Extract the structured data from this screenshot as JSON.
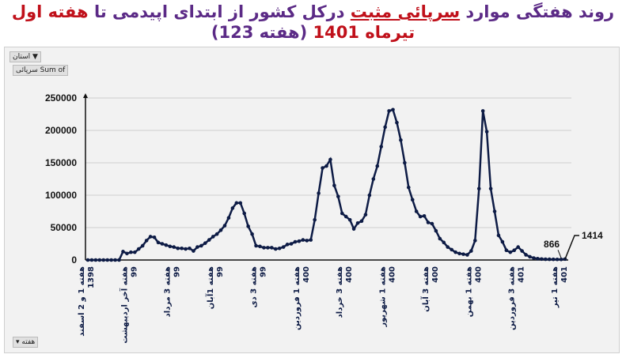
{
  "title": {
    "part1": "روند هفتگی موارد",
    "part2": "سرپائی مثبت",
    "part3": "درکل کشور از ابتدای اپیدمی تا",
    "part4": "هفته اول تیرماه",
    "part5": "1401",
    "part6": "(هفته 123)"
  },
  "filter_button": "استان",
  "field_button": "سرپائی Sum of",
  "axis_field_button": "هفته",
  "colors": {
    "line": "#0d1b45",
    "title": "#5b2a86",
    "accent": "#c0101a"
  },
  "chart_data": {
    "type": "line",
    "ylim": [
      0,
      250000
    ],
    "yticks": [
      0,
      50000,
      100000,
      150000,
      200000,
      250000
    ],
    "grid": true,
    "tick_labels": [
      "هفته 1 و 2 اسفند 1398",
      "هفته آخر اردیبهشت 99",
      "هفته 3 مرداد 99",
      "هفته 1آبان 99",
      "هفته 3 دی 99",
      "هفته 1 فروردین 400",
      "هفته 3 خرداد 400",
      "هفته 1 شهریور 400",
      "هفته 3 آبان 400",
      "هفته 1 بهمن 400",
      "هفته 3 فروردین 401",
      "هفته 1 تیر 401"
    ],
    "tick_indices": [
      0,
      11,
      22,
      33,
      44,
      55,
      66,
      77,
      88,
      99,
      110,
      121
    ],
    "values": [
      0,
      0,
      0,
      0,
      0,
      0,
      0,
      0,
      0,
      13000,
      10000,
      12000,
      12000,
      17000,
      22000,
      30000,
      36000,
      35000,
      27000,
      25000,
      23000,
      21000,
      20000,
      18000,
      18000,
      17000,
      18000,
      14000,
      20000,
      22000,
      26000,
      31000,
      36000,
      40000,
      46000,
      53000,
      65000,
      80000,
      88000,
      88000,
      72000,
      52000,
      40000,
      22000,
      21000,
      19000,
      19000,
      19000,
      17000,
      18000,
      20000,
      24000,
      25000,
      28000,
      29000,
      31000,
      30000,
      31000,
      62000,
      103000,
      142000,
      145000,
      155000,
      115000,
      98000,
      72000,
      67000,
      62000,
      48000,
      57000,
      60000,
      70000,
      100000,
      125000,
      145000,
      175000,
      205000,
      230000,
      232000,
      212000,
      185000,
      150000,
      112000,
      93000,
      75000,
      67000,
      68000,
      58000,
      56000,
      45000,
      33000,
      27000,
      20000,
      16000,
      12000,
      10000,
      9000,
      8000,
      14000,
      30000,
      110000,
      230000,
      198000,
      110000,
      75000,
      38000,
      28000,
      15000,
      12000,
      15000,
      20000,
      14000,
      8000,
      5000,
      3000,
      2000,
      1500,
      1200,
      1100,
      1000,
      900,
      866,
      1414
    ],
    "annotations": [
      {
        "label": "866",
        "index": 121
      },
      {
        "label": "1414",
        "index": 122
      }
    ]
  }
}
